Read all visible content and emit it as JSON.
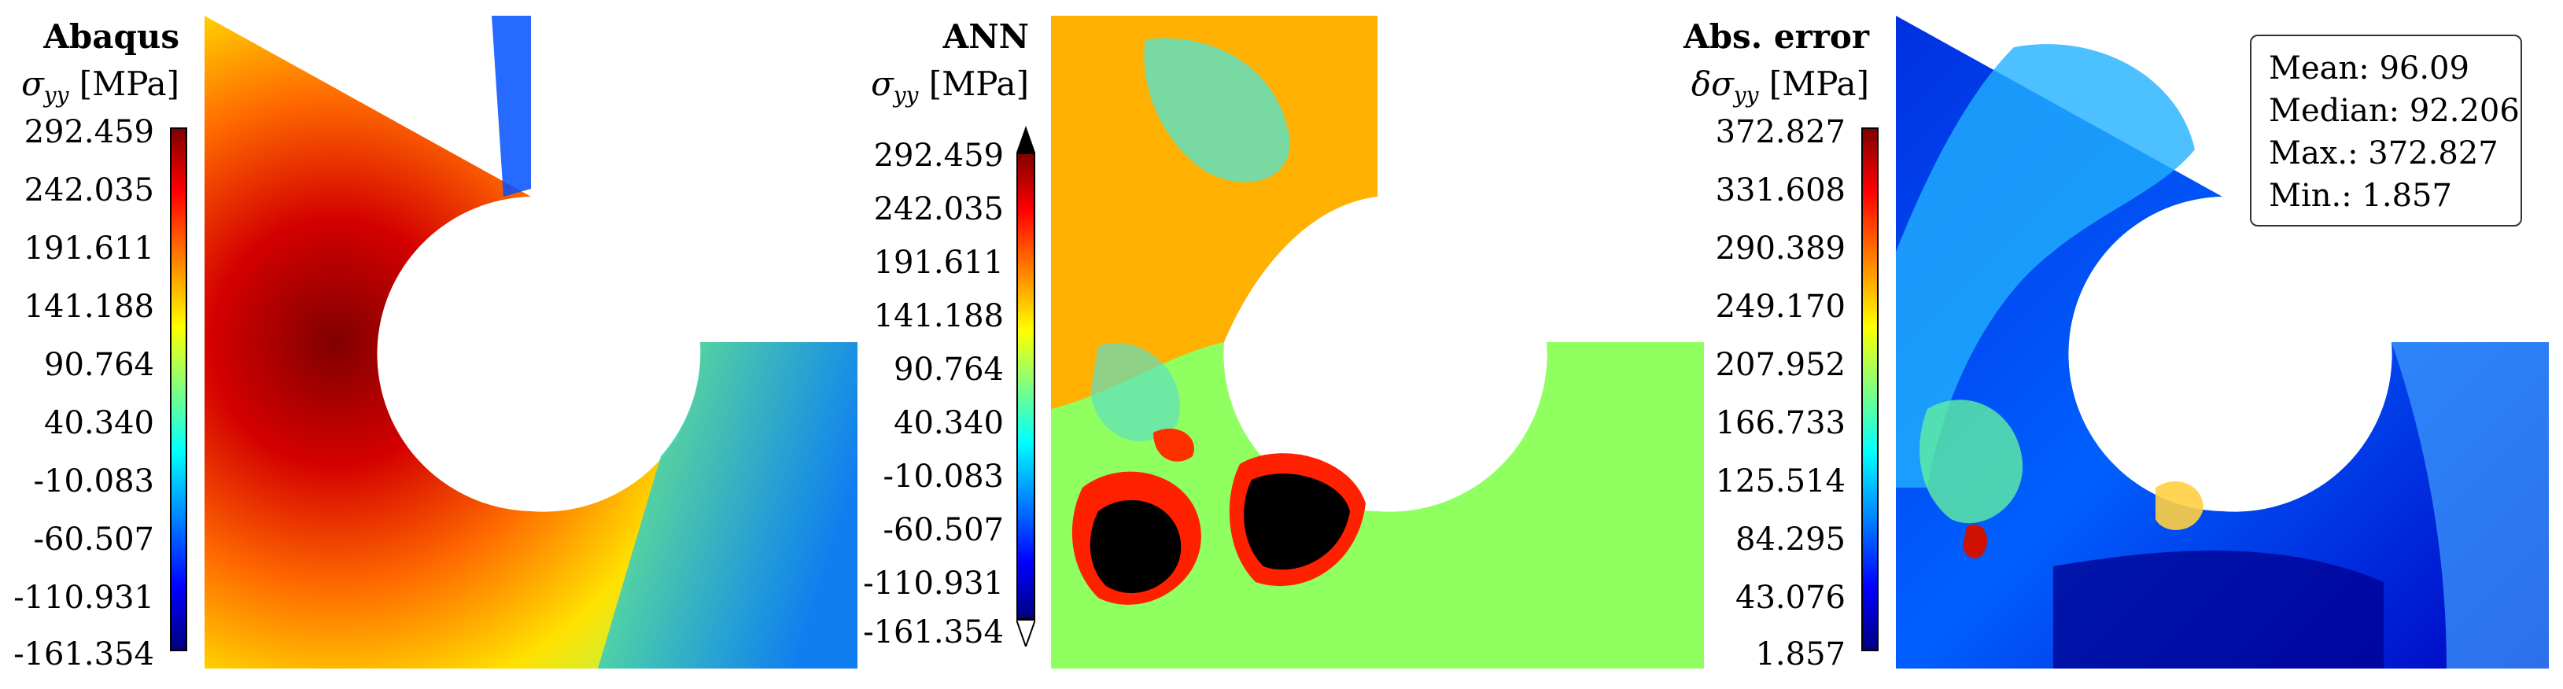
{
  "panels": [
    {
      "title": "Abaqus",
      "quantity_symbol": "σ",
      "quantity_sub": "yy",
      "quantity_prefix": "",
      "unit": "[MPa]",
      "ticks": [
        "292.459",
        "242.035",
        "191.611",
        "141.188",
        "90.764",
        "40.340",
        "-10.083",
        "-60.507",
        "-110.931",
        "-161.354"
      ],
      "colorbar_arrows": false
    },
    {
      "title": "ANN",
      "quantity_symbol": "σ",
      "quantity_sub": "yy",
      "quantity_prefix": "",
      "unit": "[MPa]",
      "ticks": [
        "292.459",
        "242.035",
        "191.611",
        "141.188",
        "90.764",
        "40.340",
        "-10.083",
        "-60.507",
        "-110.931",
        "-161.354"
      ],
      "colorbar_arrows": true
    },
    {
      "title": "Abs. error",
      "quantity_symbol": "σ",
      "quantity_sub": "yy",
      "quantity_prefix": "δ",
      "unit": "[MPa]",
      "ticks": [
        "372.827",
        "331.608",
        "290.389",
        "249.170",
        "207.952",
        "166.733",
        "125.514",
        "84.295",
        "43.076",
        "1.857"
      ],
      "colorbar_arrows": false
    }
  ],
  "stats": {
    "mean_label": "Mean:",
    "mean_value": "96.09",
    "median_label": "Median:",
    "median_value": "92.206",
    "max_label": "Max.:",
    "max_value": "372.827",
    "min_label": "Min.:",
    "min_value": "1.857"
  },
  "chart_data": [
    {
      "type": "heatmap",
      "title": "Abaqus",
      "colorbar_label": "σyy [MPa]",
      "colormap": "jet",
      "range": [
        -161.354,
        292.459
      ],
      "ticks": [
        292.459,
        242.035,
        191.611,
        141.188,
        90.764,
        40.34,
        -10.083,
        -60.507,
        -110.931,
        -161.354
      ]
    },
    {
      "type": "heatmap",
      "title": "ANN",
      "colorbar_label": "σyy [MPa]",
      "colormap": "jet",
      "range": [
        -161.354,
        292.459
      ],
      "ticks": [
        292.459,
        242.035,
        191.611,
        141.188,
        90.764,
        40.34,
        -10.083,
        -60.507,
        -110.931,
        -161.354
      ],
      "out_of_range_colors": {
        "above": "#000000",
        "below": "#ffffff"
      }
    },
    {
      "type": "heatmap",
      "title": "Abs. error",
      "colorbar_label": "δσyy [MPa]",
      "colormap": "jet",
      "range": [
        1.857,
        372.827
      ],
      "ticks": [
        372.827,
        331.608,
        290.389,
        249.17,
        207.952,
        166.733,
        125.514,
        84.295,
        43.076,
        1.857
      ],
      "stats": {
        "mean": 96.09,
        "median": 92.206,
        "max": 372.827,
        "min": 1.857
      }
    }
  ]
}
